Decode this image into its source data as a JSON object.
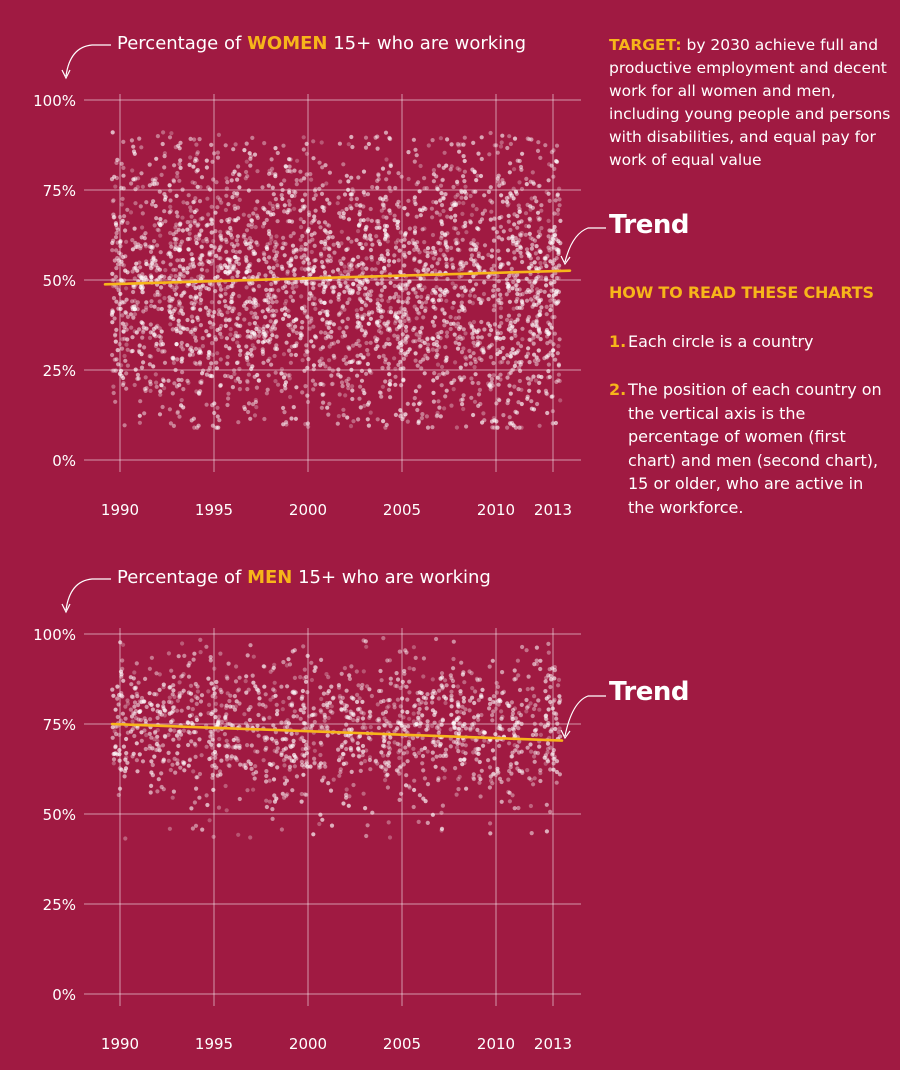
{
  "colors": {
    "background": "#a01a42",
    "highlight": "#f7b51a",
    "trend_line": "#f7b51a",
    "dots": "#ffffff"
  },
  "side_panel": {
    "target_label": "TARGET:",
    "target_text": " by 2030 achieve full and productive employment and decent work for all women and men, including young people and persons with disabilities, and equal pay for work of equal value",
    "howto_title": "HOW TO READ THESE CHARTS",
    "steps": [
      {
        "num": "1.",
        "text": "Each circle is a country"
      },
      {
        "num": "2.",
        "text": "The position of each country on the vertical axis is the percentage of women (first chart) and men (second chart), 15 or older, who are active in the workforce."
      }
    ]
  },
  "chart_data": [
    {
      "type": "scatter",
      "title_parts": [
        "Percentage of ",
        "WOMEN",
        " 15+ who are working"
      ],
      "trend_label": "Trend",
      "x_ticks": [
        "1990",
        "1995",
        "2000",
        "2005",
        "2010",
        "2013"
      ],
      "xlim": [
        1990,
        2013
      ],
      "ylim": [
        0,
        100
      ],
      "y_ticks": [
        "0%",
        "25%",
        "50%",
        "75%",
        "100%"
      ],
      "grid": true,
      "points_note_range": [
        9,
        91
      ],
      "trend": {
        "x": [
          1990,
          2013
        ],
        "y": [
          48.8,
          52.6
        ]
      },
      "scatter_range": [
        9,
        91
      ]
    },
    {
      "type": "scatter",
      "title_parts": [
        "Percentage of ",
        "MEN",
        " 15+ who are working"
      ],
      "trend_label": "Trend",
      "x_ticks": [
        "1990",
        "1995",
        "2000",
        "2005",
        "2010",
        "2013"
      ],
      "xlim": [
        1990,
        2013
      ],
      "ylim": [
        0,
        100
      ],
      "y_ticks": [
        "0%",
        "25%",
        "50%",
        "75%",
        "100%"
      ],
      "grid": true,
      "trend": {
        "x": [
          1990,
          2013
        ],
        "y": [
          75.0,
          70.4
        ]
      },
      "scatter_range": [
        43,
        99
      ]
    }
  ]
}
